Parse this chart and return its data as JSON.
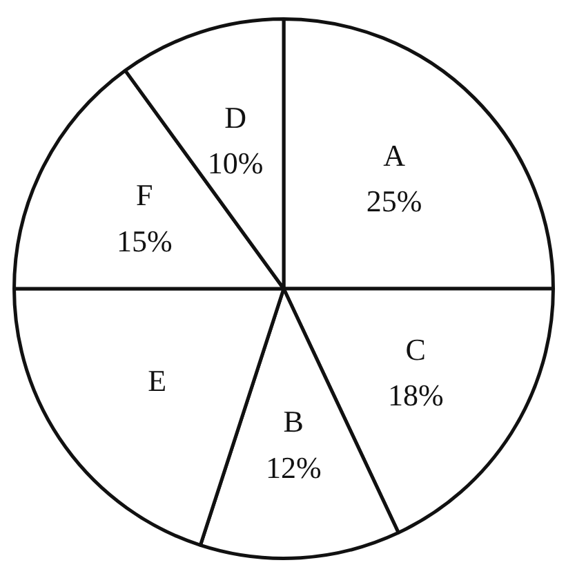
{
  "chart_data": {
    "type": "pie",
    "categories": [
      "A",
      "C",
      "B",
      "E",
      "F",
      "D"
    ],
    "values": [
      25,
      18,
      12,
      20,
      15,
      10
    ],
    "value_labels": [
      "25%",
      "18%",
      "12%",
      null,
      "15%",
      "10%"
    ],
    "colors": [
      "#ffffff",
      "#ffffff",
      "#ffffff",
      "#ffffff",
      "#ffffff",
      "#ffffff"
    ]
  }
}
